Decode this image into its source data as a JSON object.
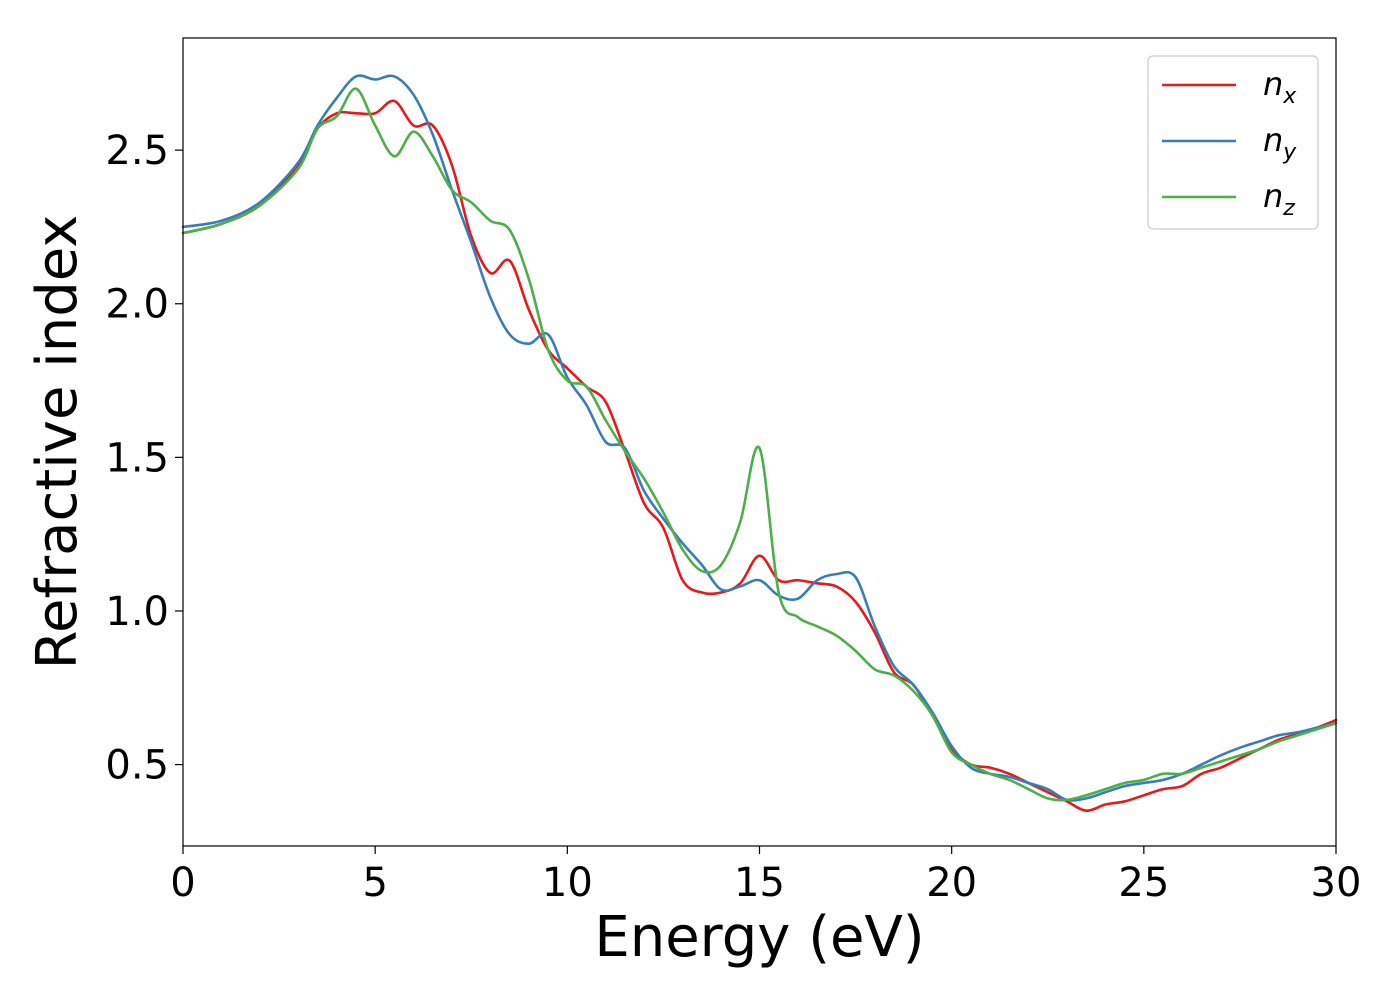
{
  "chart_data": {
    "type": "line",
    "title": "",
    "xlabel": "Energy (eV)",
    "ylabel": "Refractive index",
    "xlim": [
      0,
      30
    ],
    "ylim": [
      0.235,
      2.865
    ],
    "xticks": [
      0,
      5,
      10,
      15,
      20,
      25,
      30
    ],
    "xtick_labels": [
      "0",
      "5",
      "10",
      "15",
      "20",
      "25",
      "30"
    ],
    "yticks": [
      0.5,
      1.0,
      1.5,
      2.0,
      2.5
    ],
    "ytick_labels": [
      "0.5",
      "1.0",
      "1.5",
      "2.0",
      "2.5"
    ],
    "grid": false,
    "legend_position": "top-right",
    "series": [
      {
        "name": "n",
        "subscript": "x",
        "color": "#e41a1c",
        "x": [
          0,
          1,
          2,
          3,
          3.5,
          4,
          4.5,
          5,
          5.5,
          6,
          6.5,
          7,
          7.5,
          8,
          8.5,
          9,
          9.5,
          10,
          10.5,
          11,
          11.5,
          12,
          12.5,
          13,
          13.5,
          14,
          14.5,
          15,
          15.5,
          16,
          16.5,
          17,
          17.5,
          18,
          18.5,
          19,
          19.5,
          20,
          20.5,
          21,
          21.5,
          22,
          22.5,
          23,
          23.5,
          24,
          24.5,
          25,
          25.5,
          26,
          26.5,
          27,
          27.5,
          28,
          28.5,
          29,
          29.5,
          30
        ],
        "y": [
          2.23,
          2.26,
          2.32,
          2.45,
          2.57,
          2.62,
          2.62,
          2.62,
          2.66,
          2.58,
          2.58,
          2.45,
          2.22,
          2.1,
          2.14,
          1.98,
          1.85,
          1.79,
          1.73,
          1.68,
          1.52,
          1.35,
          1.27,
          1.1,
          1.06,
          1.06,
          1.09,
          1.18,
          1.1,
          1.1,
          1.09,
          1.08,
          1.03,
          0.93,
          0.8,
          0.76,
          0.66,
          0.55,
          0.5,
          0.49,
          0.47,
          0.44,
          0.41,
          0.38,
          0.35,
          0.37,
          0.38,
          0.4,
          0.42,
          0.43,
          0.47,
          0.49,
          0.52,
          0.55,
          0.58,
          0.6,
          0.62,
          0.645
        ]
      },
      {
        "name": "n",
        "subscript": "y",
        "color": "#377eb8",
        "x": [
          0,
          1,
          2,
          3,
          3.5,
          4,
          4.5,
          5,
          5.5,
          6,
          6.5,
          7,
          7.5,
          8,
          8.5,
          9,
          9.5,
          10,
          10.5,
          11,
          11.5,
          12,
          12.5,
          13,
          13.5,
          14,
          14.5,
          15,
          15.5,
          16,
          16.5,
          17,
          17.5,
          18,
          18.5,
          19,
          19.5,
          20,
          20.5,
          21,
          21.5,
          22,
          22.5,
          23,
          23.5,
          24,
          24.5,
          25,
          25.5,
          26,
          26.5,
          27,
          27.5,
          28,
          28.5,
          29,
          29.5,
          30
        ],
        "y": [
          2.25,
          2.27,
          2.33,
          2.46,
          2.58,
          2.67,
          2.74,
          2.73,
          2.74,
          2.68,
          2.55,
          2.37,
          2.2,
          2.02,
          1.9,
          1.87,
          1.9,
          1.76,
          1.67,
          1.55,
          1.53,
          1.39,
          1.3,
          1.22,
          1.15,
          1.07,
          1.08,
          1.1,
          1.05,
          1.04,
          1.1,
          1.12,
          1.11,
          0.95,
          0.82,
          0.76,
          0.67,
          0.56,
          0.49,
          0.47,
          0.46,
          0.44,
          0.42,
          0.385,
          0.39,
          0.41,
          0.43,
          0.44,
          0.45,
          0.47,
          0.5,
          0.53,
          0.555,
          0.575,
          0.595,
          0.605,
          0.62,
          0.635
        ]
      },
      {
        "name": "n",
        "subscript": "z",
        "color": "#4daf4a",
        "x": [
          0,
          1,
          2,
          3,
          3.5,
          4,
          4.5,
          5,
          5.5,
          6,
          6.5,
          7,
          7.5,
          8,
          8.5,
          9,
          9.5,
          10,
          10.5,
          11,
          11.5,
          12,
          12.5,
          13,
          13.5,
          14,
          14.5,
          15,
          15.5,
          16,
          16.5,
          17,
          17.5,
          18,
          18.5,
          19,
          19.5,
          20,
          20.5,
          21,
          21.5,
          22,
          22.5,
          23,
          23.5,
          24,
          24.5,
          25,
          25.5,
          26,
          26.5,
          27,
          27.5,
          28,
          28.5,
          29,
          29.5,
          30
        ],
        "y": [
          2.23,
          2.26,
          2.32,
          2.44,
          2.57,
          2.61,
          2.7,
          2.58,
          2.48,
          2.56,
          2.48,
          2.37,
          2.33,
          2.27,
          2.24,
          2.08,
          1.85,
          1.75,
          1.73,
          1.62,
          1.52,
          1.43,
          1.32,
          1.2,
          1.13,
          1.15,
          1.29,
          1.53,
          1.06,
          0.98,
          0.95,
          0.92,
          0.87,
          0.81,
          0.79,
          0.74,
          0.66,
          0.54,
          0.5,
          0.47,
          0.45,
          0.42,
          0.39,
          0.385,
          0.4,
          0.42,
          0.44,
          0.45,
          0.47,
          0.47,
          0.49,
          0.51,
          0.53,
          0.55,
          0.575,
          0.595,
          0.615,
          0.635
        ]
      }
    ]
  }
}
